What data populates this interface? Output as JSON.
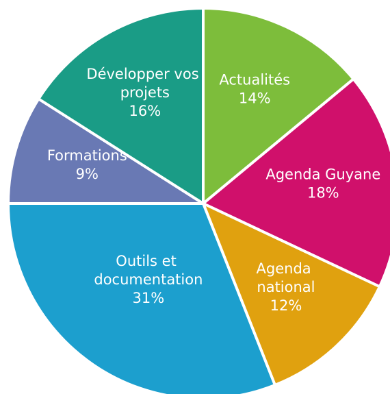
{
  "chart_data": {
    "type": "pie",
    "categories": [
      "Actualités",
      "Agenda Guyane",
      "Agenda national",
      "Outils et documentation",
      "Formations",
      "Développer vos projets"
    ],
    "values": [
      14,
      18,
      12,
      31,
      9,
      16
    ],
    "value_labels": [
      "14%",
      "18%",
      "12%",
      "31%",
      "9%",
      "16%"
    ],
    "colors": [
      "#7dbd3b",
      "#d0106b",
      "#e0a10f",
      "#1c9fce",
      "#6979b4",
      "#1a9c86"
    ]
  }
}
